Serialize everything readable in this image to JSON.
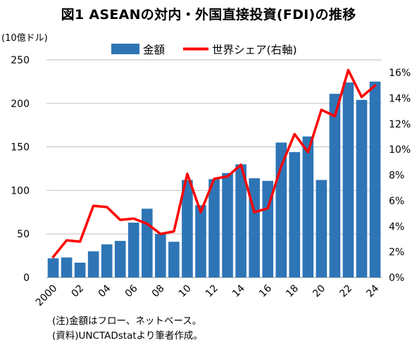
{
  "title": "図1 ASEANの対内・外国直接投資(FDI)の推移",
  "chart_data": {
    "type": "bar+line",
    "title": "図1 ASEANの対内・外国直接投資(FDI)の推移",
    "y_left_unit": "(10億ドル)",
    "x_categories": [
      "2000",
      "01",
      "02",
      "03",
      "04",
      "05",
      "06",
      "07",
      "08",
      "09",
      "10",
      "11",
      "12",
      "13",
      "14",
      "15",
      "16",
      "17",
      "18",
      "19",
      "20",
      "21",
      "22",
      "23",
      "24"
    ],
    "x_tick_labels": [
      "2000",
      "02",
      "04",
      "06",
      "08",
      "10",
      "12",
      "14",
      "16",
      "18",
      "20",
      "22",
      "24"
    ],
    "y_left": {
      "min": 0,
      "max": 250,
      "ticks": [
        "0",
        "50",
        "100",
        "150",
        "200",
        "250"
      ]
    },
    "y_right": {
      "min": 0,
      "max": 17,
      "ticks": [
        "0%",
        "2%",
        "4%",
        "6%",
        "8%",
        "10%",
        "12%",
        "14%",
        "16%"
      ]
    },
    "legend": {
      "bar": "金額",
      "line": "世界シェア(右軸)"
    },
    "series": [
      {
        "name": "金額",
        "kind": "bar",
        "axis": "left",
        "color": "#2e75b6",
        "values": [
          22,
          23,
          17,
          30,
          38,
          42,
          63,
          79,
          50,
          41,
          112,
          83,
          113,
          120,
          130,
          114,
          111,
          155,
          144,
          162,
          112,
          211,
          224,
          204,
          225
        ]
      },
      {
        "name": "世界シェア(右軸)",
        "kind": "line",
        "axis": "right",
        "color": "#ff0000",
        "values": [
          1.6,
          2.9,
          2.8,
          5.6,
          5.5,
          4.5,
          4.6,
          4.2,
          3.4,
          3.6,
          8.1,
          5.1,
          7.7,
          7.9,
          8.8,
          5.1,
          5.4,
          8.7,
          11.2,
          9.8,
          13.1,
          12.6,
          16.2,
          14.1,
          15.0
        ]
      }
    ],
    "grid": true
  },
  "notes": {
    "line1": "(注)金額はフロー、ネットベース。",
    "line2": "(資料)UNCTADstatより筆者作成。"
  }
}
